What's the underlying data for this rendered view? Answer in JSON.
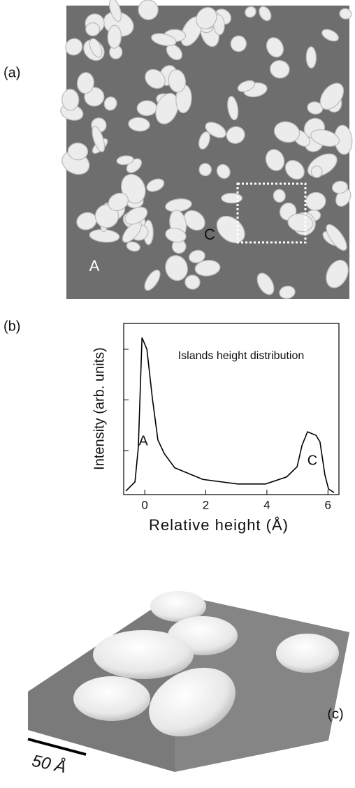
{
  "panels": {
    "a": {
      "label": "(a)",
      "marks": [
        "C",
        "A"
      ]
    },
    "c": {
      "label": "(c)",
      "scale": "50 Å"
    }
  },
  "chart_data": {
    "type": "line",
    "panel_label": "(b)",
    "xlabel": "Relative height  (Å)",
    "ylabel": "Intensity (arb. units)",
    "annotation": "Islands height distribution",
    "peak_labels": [
      "A",
      "C"
    ],
    "xlim": [
      -0.69,
      6.36
    ],
    "xticks": [
      0,
      2,
      4,
      6
    ],
    "ylim": [
      0.13,
      3.51
    ],
    "yticks": [
      1,
      2,
      3
    ],
    "color": "#000000",
    "x": [
      -0.62,
      -0.32,
      -0.21,
      -0.09,
      0.07,
      0.25,
      0.43,
      0.64,
      0.98,
      1.9,
      3.04,
      3.96,
      4.65,
      4.99,
      5.15,
      5.33,
      5.61,
      5.74,
      5.9,
      6.02,
      6.2
    ],
    "values": [
      0.2,
      0.38,
      1.07,
      3.23,
      3.0,
      2.03,
      1.21,
      0.94,
      0.66,
      0.43,
      0.34,
      0.34,
      0.48,
      0.68,
      1.1,
      1.37,
      1.3,
      1.17,
      0.52,
      0.24,
      0.17
    ]
  }
}
